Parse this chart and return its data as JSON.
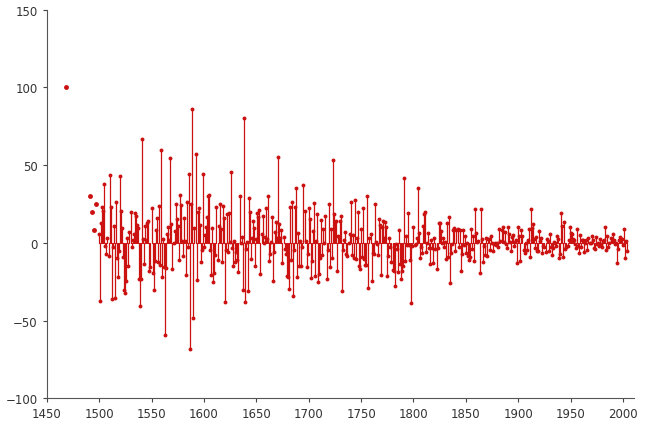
{
  "xlim": [
    1450,
    2010
  ],
  "ylim": [
    -100,
    150
  ],
  "yticks": [
    -100,
    -50,
    0,
    50,
    100,
    150
  ],
  "xticks": [
    1450,
    1500,
    1550,
    1600,
    1650,
    1700,
    1750,
    1800,
    1850,
    1900,
    1950,
    2000
  ],
  "color": "#cc1111",
  "marker_size": 8,
  "line_width": 0.9,
  "figsize": [
    6.45,
    4.27
  ],
  "dpi": 100,
  "background_color": "#ffffff",
  "seed": 17
}
